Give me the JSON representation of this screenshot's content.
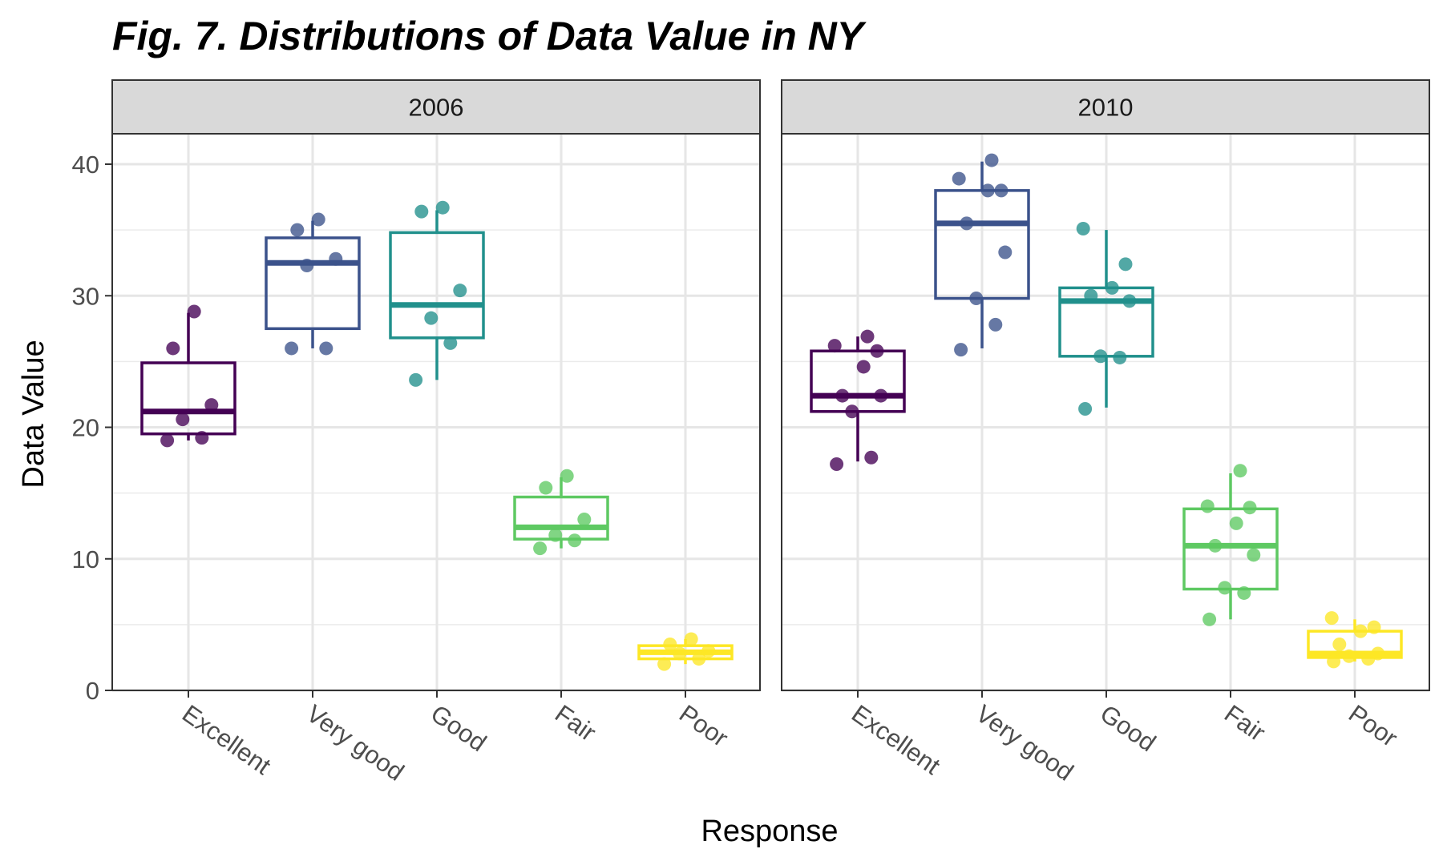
{
  "title": "Fig. 7. Distributions of Data Value in NY",
  "chart_data": {
    "type": "boxplot",
    "xlabel": "Response",
    "ylabel": "Data Value",
    "ylim": [
      0,
      42
    ],
    "yticks": [
      0,
      10,
      20,
      30,
      40
    ],
    "categories": [
      "Excellent",
      "Very good",
      "Good",
      "Fair",
      "Poor"
    ],
    "colors": {
      "Excellent": "#440154",
      "Very good": "#3b528b",
      "Good": "#21908c",
      "Fair": "#5ec962",
      "Poor": "#fde725"
    },
    "grid": true,
    "facets": [
      {
        "label": "2006",
        "groups": [
          {
            "category": "Excellent",
            "min": 19.0,
            "q1": 19.5,
            "median": 21.2,
            "q3": 24.9,
            "max": 28.7,
            "points": [
              19.0,
              19.2,
              20.6,
              21.7,
              26.0,
              28.8
            ]
          },
          {
            "category": "Very good",
            "min": 26.0,
            "q1": 27.5,
            "median": 32.5,
            "q3": 34.4,
            "max": 35.7,
            "points": [
              26.0,
              26.0,
              32.3,
              32.8,
              35.0,
              35.8
            ]
          },
          {
            "category": "Good",
            "min": 23.6,
            "q1": 26.8,
            "median": 29.3,
            "q3": 34.8,
            "max": 36.5,
            "points": [
              23.6,
              26.4,
              28.3,
              30.4,
              36.4,
              36.7
            ]
          },
          {
            "category": "Fair",
            "min": 10.8,
            "q1": 11.5,
            "median": 12.4,
            "q3": 14.7,
            "max": 16.2,
            "points": [
              10.8,
              11.4,
              11.8,
              13.0,
              15.4,
              16.3
            ]
          },
          {
            "category": "Poor",
            "min": 2.0,
            "q1": 2.4,
            "median": 2.9,
            "q3": 3.4,
            "max": 3.9,
            "points": [
              2.0,
              2.4,
              2.8,
              3.0,
              3.5,
              3.9
            ]
          }
        ]
      },
      {
        "label": "2010",
        "groups": [
          {
            "category": "Excellent",
            "min": 17.4,
            "q1": 21.2,
            "median": 22.4,
            "q3": 25.8,
            "max": 26.9,
            "points": [
              17.2,
              17.7,
              21.2,
              22.4,
              22.4,
              24.6,
              25.8,
              26.2,
              26.9
            ]
          },
          {
            "category": "Very good",
            "min": 26.0,
            "q1": 29.8,
            "median": 35.5,
            "q3": 38.0,
            "max": 40.2,
            "points": [
              25.9,
              27.8,
              29.8,
              33.3,
              35.5,
              38.0,
              38.0,
              38.9,
              40.3
            ]
          },
          {
            "category": "Good",
            "min": 21.5,
            "q1": 25.4,
            "median": 29.6,
            "q3": 30.6,
            "max": 35.0,
            "points": [
              21.4,
              25.3,
              25.4,
              29.6,
              30.0,
              30.6,
              32.4,
              35.1
            ]
          },
          {
            "category": "Fair",
            "min": 5.4,
            "q1": 7.7,
            "median": 11.0,
            "q3": 13.8,
            "max": 16.5,
            "points": [
              5.4,
              7.4,
              7.8,
              10.3,
              11.0,
              12.7,
              13.9,
              14.0,
              16.7
            ]
          },
          {
            "category": "Poor",
            "min": 2.2,
            "q1": 2.5,
            "median": 2.8,
            "q3": 4.5,
            "max": 5.4,
            "points": [
              2.2,
              2.4,
              2.6,
              2.8,
              3.5,
              4.5,
              4.8,
              5.5
            ]
          }
        ]
      }
    ]
  }
}
